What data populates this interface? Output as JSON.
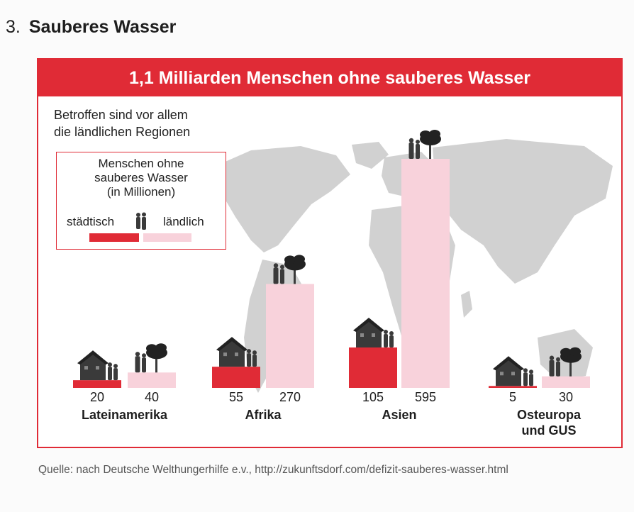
{
  "heading": {
    "number": "3.",
    "title": "Sauberes Wasser"
  },
  "source": "Quelle: nach Deutsche Welthungerhilfe e.v., http://zukunftsdorf.com/defizit-sauberes-wasser.html",
  "colors": {
    "urban": "#e02b36",
    "rural": "#f8d2db",
    "map": "#b9b9b9",
    "icon": "#3a3a3a",
    "banner": "#e02b36"
  },
  "icons": {
    "urban": "house-with-people-icon",
    "rural": "people-with-tree-icon",
    "legend": "two-people-icon"
  },
  "chart_data": {
    "type": "bar",
    "title": "1,1 Milliarden Menschen ohne sauberes Wasser",
    "subtitle": "Betroffen sind vor allem\ndie ländlichen Regionen",
    "legend_title": "Menschen ohne\nsauberes Wasser\n(in Millionen)",
    "ylim": [
      0,
      595
    ],
    "grid": false,
    "legend_position": "top-left",
    "categories": [
      "Lateinamerika",
      "Afrika",
      "Asien",
      "Osteuropa\nund GUS"
    ],
    "series": [
      {
        "name": "städtisch",
        "values": [
          20,
          55,
          105,
          5
        ]
      },
      {
        "name": "ländlich",
        "values": [
          40,
          270,
          595,
          30
        ]
      }
    ]
  }
}
